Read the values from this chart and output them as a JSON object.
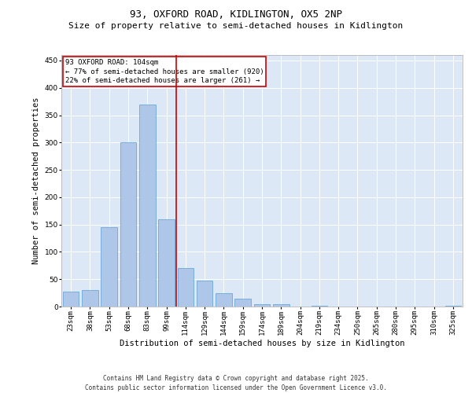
{
  "title_line1": "93, OXFORD ROAD, KIDLINGTON, OX5 2NP",
  "title_line2": "Size of property relative to semi-detached houses in Kidlington",
  "xlabel": "Distribution of semi-detached houses by size in Kidlington",
  "ylabel": "Number of semi-detached properties",
  "categories": [
    "23sqm",
    "38sqm",
    "53sqm",
    "68sqm",
    "83sqm",
    "99sqm",
    "114sqm",
    "129sqm",
    "144sqm",
    "159sqm",
    "174sqm",
    "189sqm",
    "204sqm",
    "219sqm",
    "234sqm",
    "250sqm",
    "265sqm",
    "280sqm",
    "295sqm",
    "310sqm",
    "325sqm"
  ],
  "values": [
    28,
    30,
    145,
    300,
    370,
    160,
    70,
    48,
    24,
    15,
    5,
    5,
    0,
    1,
    0,
    0,
    0,
    0,
    0,
    0,
    2
  ],
  "bar_color": "#aec6e8",
  "bar_edge_color": "#5a9fd4",
  "vline_position": 5.5,
  "vline_color": "#cc0000",
  "annotation_title": "93 OXFORD ROAD: 104sqm",
  "annotation_line1": "← 77% of semi-detached houses are smaller (920)",
  "annotation_line2": "22% of semi-detached houses are larger (261) →",
  "annotation_box_color": "#ffffff",
  "annotation_box_edge": "#cc0000",
  "ylim": [
    0,
    460
  ],
  "yticks": [
    0,
    50,
    100,
    150,
    200,
    250,
    300,
    350,
    400,
    450
  ],
  "background_color": "#dce8f5",
  "footer_line1": "Contains HM Land Registry data © Crown copyright and database right 2025.",
  "footer_line2": "Contains public sector information licensed under the Open Government Licence v3.0.",
  "title_fontsize": 9,
  "subtitle_fontsize": 8,
  "axis_label_fontsize": 7.5,
  "tick_fontsize": 6.5,
  "annotation_fontsize": 6.5,
  "footer_fontsize": 5.5
}
